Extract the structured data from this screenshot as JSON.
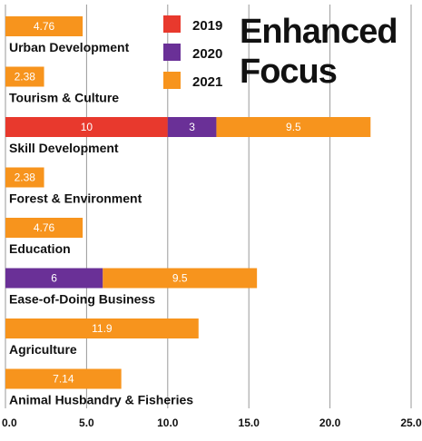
{
  "chart_data": {
    "type": "bar",
    "orientation": "horizontal",
    "stacked": true,
    "title_lines": [
      "Enhanced",
      "Focus"
    ],
    "categories": [
      "Urban Development",
      "Tourism & Culture",
      "Skill Development",
      "Forest & Environment",
      "Education",
      "Ease-of-Doing Business",
      "Agriculture",
      "Animal Husbandry & Fisheries"
    ],
    "series": [
      {
        "name": "2019",
        "color": "#e8392d",
        "values": [
          0,
          0,
          10,
          0,
          0,
          0,
          0,
          0
        ]
      },
      {
        "name": "2020",
        "color": "#6a3097",
        "values": [
          0,
          0,
          3,
          0,
          0,
          6,
          0,
          0
        ]
      },
      {
        "name": "2021",
        "color": "#f7941d",
        "values": [
          4.76,
          2.38,
          9.5,
          2.38,
          4.76,
          9.5,
          11.9,
          7.14
        ]
      }
    ],
    "xlim": [
      0,
      25
    ],
    "xticks": [
      "0.0",
      "5.0",
      "10.0",
      "15.0",
      "20.0",
      "25.0"
    ],
    "xlabel": "",
    "ylabel": "",
    "grid": "vertical",
    "legend_position": "top"
  }
}
